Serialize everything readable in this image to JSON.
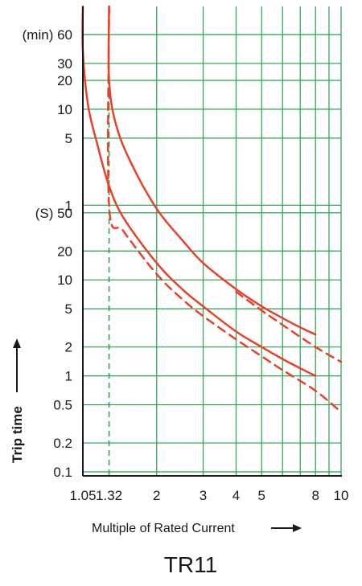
{
  "chart_data": {
    "type": "line",
    "title": "TR11",
    "xlabel": "Multiple of Rated Current",
    "ylabel": "Trip time",
    "x_scale": "log",
    "y_scale": "log",
    "xlim": [
      1.05,
      10
    ],
    "ylim_seconds": [
      0.1,
      14400
    ],
    "grid": true,
    "x_ticks": [
      {
        "value": 1.05,
        "label": "1.05"
      },
      {
        "value": 1.32,
        "label": "1.32"
      },
      {
        "value": 2,
        "label": "2"
      },
      {
        "value": 3,
        "label": "3"
      },
      {
        "value": 4,
        "label": "4"
      },
      {
        "value": 5,
        "label": "5"
      },
      {
        "value": 8,
        "label": "8"
      },
      {
        "value": 10,
        "label": "10"
      }
    ],
    "x_gridlines": [
      1.05,
      1.32,
      2,
      3,
      4,
      5,
      6,
      7,
      8,
      9,
      10
    ],
    "y_ticks": [
      {
        "seconds": 3600,
        "label": "(min) 60"
      },
      {
        "seconds": 1800,
        "label": "30"
      },
      {
        "seconds": 1200,
        "label": "20"
      },
      {
        "seconds": 600,
        "label": "10"
      },
      {
        "seconds": 300,
        "label": "5"
      },
      {
        "seconds": 60,
        "label": "1"
      },
      {
        "seconds": 50,
        "label": "(S) 50"
      },
      {
        "seconds": 20,
        "label": "20"
      },
      {
        "seconds": 10,
        "label": "10"
      },
      {
        "seconds": 5,
        "label": "5"
      },
      {
        "seconds": 2,
        "label": "2"
      },
      {
        "seconds": 1,
        "label": "1"
      },
      {
        "seconds": 0.5,
        "label": "0.5"
      },
      {
        "seconds": 0.2,
        "label": "0.2"
      },
      {
        "seconds": 0.1,
        "label": "0.1"
      }
    ],
    "y_gridlines_seconds": [
      3600,
      1800,
      1200,
      600,
      300,
      60,
      50,
      20,
      10,
      5,
      2,
      1,
      0.5,
      0.2,
      0.1
    ],
    "series": [
      {
        "style": "solid",
        "color": "#e8412b",
        "points": [
          [
            1.32,
            14400
          ],
          [
            1.32,
            1200
          ],
          [
            1.4,
            420
          ],
          [
            1.6,
            165
          ],
          [
            2,
            55
          ],
          [
            2.5,
            26
          ],
          [
            3,
            15
          ],
          [
            4,
            8
          ],
          [
            5,
            5.3
          ],
          [
            6,
            4
          ],
          [
            7,
            3.2
          ],
          [
            8,
            2.7
          ]
        ]
      },
      {
        "style": "solid",
        "color": "#e8412b",
        "points": [
          [
            1.05,
            14400
          ],
          [
            1.05,
            2400
          ],
          [
            1.1,
            650
          ],
          [
            1.2,
            240
          ],
          [
            1.32,
            95
          ],
          [
            1.5,
            44
          ],
          [
            2,
            15
          ],
          [
            2.5,
            8
          ],
          [
            3,
            5.3
          ],
          [
            4,
            2.9
          ],
          [
            5,
            2
          ],
          [
            6,
            1.5
          ],
          [
            7,
            1.2
          ],
          [
            8,
            1
          ]
        ]
      },
      {
        "style": "dashed",
        "color": "#e8412b",
        "points": [
          [
            1.32,
            14400
          ],
          [
            1.32,
            60
          ],
          [
            1.5,
            32
          ],
          [
            2,
            11.5
          ],
          [
            2.5,
            6.3
          ],
          [
            3,
            4.2
          ],
          [
            4,
            2.4
          ],
          [
            5,
            1.6
          ],
          [
            6,
            1.15
          ],
          [
            8,
            0.7
          ],
          [
            10,
            0.42
          ]
        ]
      },
      {
        "style": "dashed",
        "color": "#e8412b",
        "points": [
          [
            4,
            7.5
          ],
          [
            5,
            4.8
          ],
          [
            6,
            3.4
          ],
          [
            8,
            2
          ],
          [
            10,
            1.4
          ]
        ]
      }
    ],
    "vertical_markers": [
      {
        "x": 1.05,
        "color": "#1f9e4f",
        "style": "dashed"
      },
      {
        "x": 1.32,
        "color": "#1f9e4f",
        "style": "dashed"
      }
    ],
    "colors": {
      "grid": "#22a34f",
      "curve": "#e8412b",
      "axis": "#1a1a1a"
    }
  }
}
